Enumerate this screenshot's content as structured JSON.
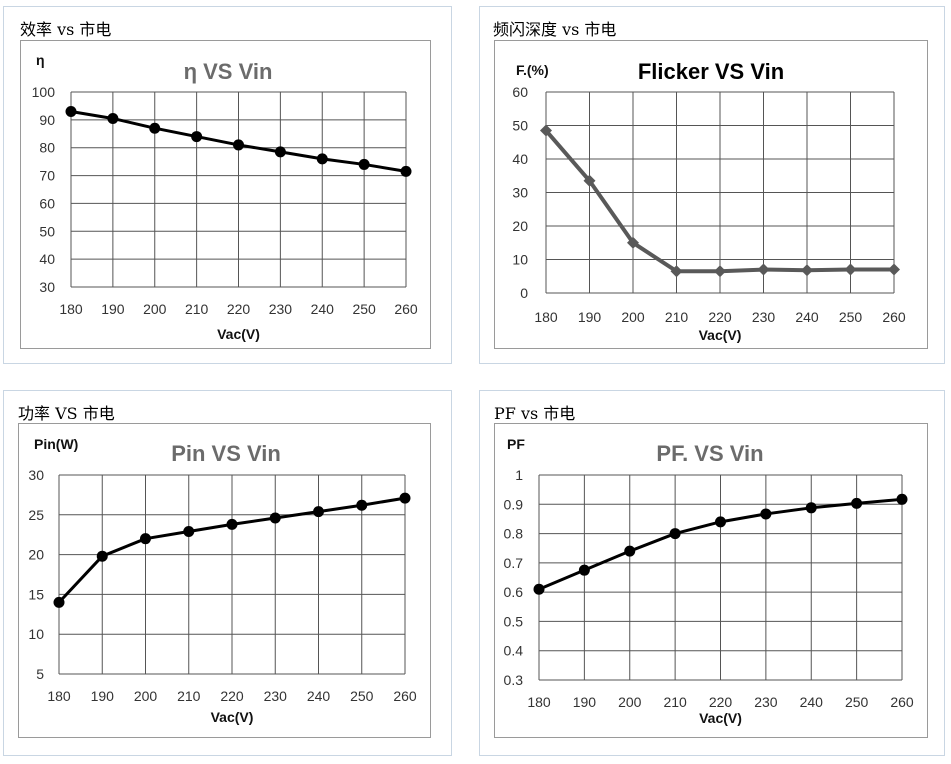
{
  "chart_data": [
    {
      "id": "eff",
      "caption": "效率 vs 市电",
      "type": "line",
      "title": "η VS Vin",
      "ylabel": "η",
      "xlabel": "Vac(V)",
      "x": [
        180,
        190,
        200,
        210,
        220,
        230,
        240,
        250,
        260
      ],
      "ylim": [
        30,
        100
      ],
      "yticks": [
        30,
        40,
        50,
        60,
        70,
        80,
        90,
        100
      ],
      "series": [
        {
          "values": [
            93,
            90.5,
            87,
            84,
            81,
            78.5,
            76,
            74,
            71.5
          ]
        }
      ],
      "marker": "circle",
      "color": "#000000",
      "grid": true
    },
    {
      "id": "flicker",
      "caption": "频闪深度 vs 市电",
      "type": "line",
      "title": "Flicker VS Vin",
      "ylabel": "F.(%)",
      "xlabel": "Vac(V)",
      "x": [
        180,
        190,
        200,
        210,
        220,
        230,
        240,
        250,
        260
      ],
      "ylim": [
        0,
        60
      ],
      "yticks": [
        0,
        10,
        20,
        30,
        40,
        50,
        60
      ],
      "series": [
        {
          "values": [
            48.5,
            33.5,
            15,
            6.5,
            6.5,
            7,
            6.8,
            7,
            7
          ]
        }
      ],
      "marker": "diamond",
      "color": "#595959",
      "grid": true
    },
    {
      "id": "pin",
      "caption": "功率 VS 市电",
      "type": "line",
      "title": "Pin VS Vin",
      "ylabel": "Pin(W)",
      "xlabel": "Vac(V)",
      "x": [
        180,
        190,
        200,
        210,
        220,
        230,
        240,
        250,
        260
      ],
      "ylim": [
        5,
        30
      ],
      "yticks": [
        5,
        10,
        15,
        20,
        25,
        30
      ],
      "series": [
        {
          "values": [
            14,
            19.8,
            22,
            22.9,
            23.8,
            24.6,
            25.4,
            26.2,
            27.1
          ]
        }
      ],
      "marker": "circle",
      "color": "#000000",
      "grid": true
    },
    {
      "id": "pf",
      "caption": "PF vs 市电",
      "type": "line",
      "title": "PF. VS Vin",
      "ylabel": "PF",
      "xlabel": "Vac(V)",
      "x": [
        180,
        190,
        200,
        210,
        220,
        230,
        240,
        250,
        260
      ],
      "ylim": [
        0.3,
        1
      ],
      "yticks": [
        0.3,
        0.4,
        0.5,
        0.6,
        0.7,
        0.8,
        0.9,
        1
      ],
      "series": [
        {
          "values": [
            0.61,
            0.675,
            0.74,
            0.8,
            0.84,
            0.867,
            0.888,
            0.903,
            0.917
          ]
        }
      ],
      "marker": "circle",
      "color": "#000000",
      "grid": true
    }
  ]
}
